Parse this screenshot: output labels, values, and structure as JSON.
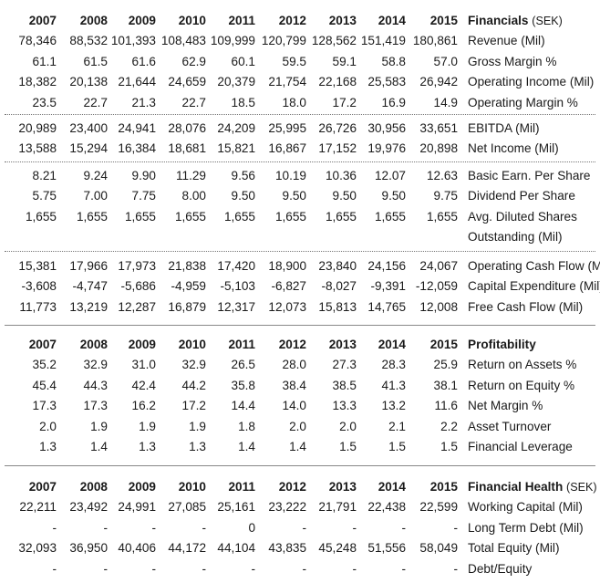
{
  "years": [
    "2007",
    "2008",
    "2009",
    "2010",
    "2011",
    "2012",
    "2013",
    "2014",
    "2015"
  ],
  "financials": {
    "title": "Financials",
    "unit": "(SEK)",
    "groups": [
      [
        {
          "label": "Revenue (Mil)",
          "values": [
            "78,346",
            "88,532",
            "101,393",
            "108,483",
            "109,999",
            "120,799",
            "128,562",
            "151,419",
            "180,861"
          ]
        },
        {
          "label": "Gross Margin %",
          "values": [
            "61.1",
            "61.5",
            "61.6",
            "62.9",
            "60.1",
            "59.5",
            "59.1",
            "58.8",
            "57.0"
          ]
        },
        {
          "label": "Operating Income (Mil)",
          "values": [
            "18,382",
            "20,138",
            "21,644",
            "24,659",
            "20,379",
            "21,754",
            "22,168",
            "25,583",
            "26,942"
          ]
        },
        {
          "label": "Operating Margin %",
          "values": [
            "23.5",
            "22.7",
            "21.3",
            "22.7",
            "18.5",
            "18.0",
            "17.2",
            "16.9",
            "14.9"
          ]
        }
      ],
      [
        {
          "label": "EBITDA (Mil)",
          "values": [
            "20,989",
            "23,400",
            "24,941",
            "28,076",
            "24,209",
            "25,995",
            "26,726",
            "30,956",
            "33,651"
          ]
        },
        {
          "label": "Net Income (Mil)",
          "values": [
            "13,588",
            "15,294",
            "16,384",
            "18,681",
            "15,821",
            "16,867",
            "17,152",
            "19,976",
            "20,898"
          ]
        }
      ],
      [
        {
          "label": "Basic Earn. Per Share",
          "values": [
            "8.21",
            "9.24",
            "9.90",
            "11.29",
            "9.56",
            "10.19",
            "10.36",
            "12.07",
            "12.63"
          ]
        },
        {
          "label": "Dividend Per Share",
          "values": [
            "5.75",
            "7.00",
            "7.75",
            "8.00",
            "9.50",
            "9.50",
            "9.50",
            "9.50",
            "9.75"
          ]
        },
        {
          "label": "Avg. Diluted Shares",
          "values": [
            "1,655",
            "1,655",
            "1,655",
            "1,655",
            "1,655",
            "1,655",
            "1,655",
            "1,655",
            "1,655"
          ]
        },
        {
          "label": "Outstanding (Mil)",
          "values": [
            "",
            "",
            "",
            "",
            "",
            "",
            "",
            "",
            ""
          ]
        }
      ],
      [
        {
          "label": "Operating Cash Flow (Mil)",
          "values": [
            "15,381",
            "17,966",
            "17,973",
            "21,838",
            "17,420",
            "18,900",
            "23,840",
            "24,156",
            "24,067"
          ]
        },
        {
          "label": "Capital Expenditure (Mil)",
          "values": [
            "-3,608",
            "-4,747",
            "-5,686",
            "-4,959",
            "-5,103",
            "-6,827",
            "-8,027",
            "-9,391",
            "-12,059"
          ]
        },
        {
          "label": "Free Cash Flow (Mil)",
          "values": [
            "11,773",
            "13,219",
            "12,287",
            "16,879",
            "12,317",
            "12,073",
            "15,813",
            "14,765",
            "12,008"
          ]
        }
      ]
    ]
  },
  "profitability": {
    "title": "Profitability",
    "rows": [
      {
        "label": "Return on Assets %",
        "values": [
          "35.2",
          "32.9",
          "31.0",
          "32.9",
          "26.5",
          "28.0",
          "27.3",
          "28.3",
          "25.9"
        ]
      },
      {
        "label": "Return on Equity %",
        "values": [
          "45.4",
          "44.3",
          "42.4",
          "44.2",
          "35.8",
          "38.4",
          "38.5",
          "41.3",
          "38.1"
        ]
      },
      {
        "label": "Net Margin %",
        "values": [
          "17.3",
          "17.3",
          "16.2",
          "17.2",
          "14.4",
          "14.0",
          "13.3",
          "13.2",
          "11.6"
        ]
      },
      {
        "label": "Asset Turnover",
        "values": [
          "2.0",
          "1.9",
          "1.9",
          "1.9",
          "1.8",
          "2.0",
          "2.0",
          "2.1",
          "2.2"
        ]
      },
      {
        "label": "Financial Leverage",
        "values": [
          "1.3",
          "1.4",
          "1.3",
          "1.3",
          "1.4",
          "1.4",
          "1.5",
          "1.5",
          "1.5"
        ]
      }
    ]
  },
  "financial_health": {
    "title": "Financial Health",
    "unit": "(SEK)",
    "rows": [
      {
        "label": "Working Capital (Mil)",
        "values": [
          "22,211",
          "23,492",
          "24,991",
          "27,085",
          "25,161",
          "23,222",
          "21,791",
          "22,438",
          "22,599"
        ]
      },
      {
        "label": "Long Term Debt (Mil)",
        "values": [
          "-",
          "-",
          "-",
          "-",
          "0",
          "-",
          "-",
          "-",
          "-"
        ]
      },
      {
        "label": "Total Equity (Mil)",
        "values": [
          "32,093",
          "36,950",
          "40,406",
          "44,172",
          "44,104",
          "43,835",
          "45,248",
          "51,556",
          "58,049"
        ]
      },
      {
        "label": "Debt/Equity",
        "values": [
          "-",
          "-",
          "-",
          "-",
          "-",
          "-",
          "-",
          "-",
          "-"
        ]
      }
    ]
  }
}
